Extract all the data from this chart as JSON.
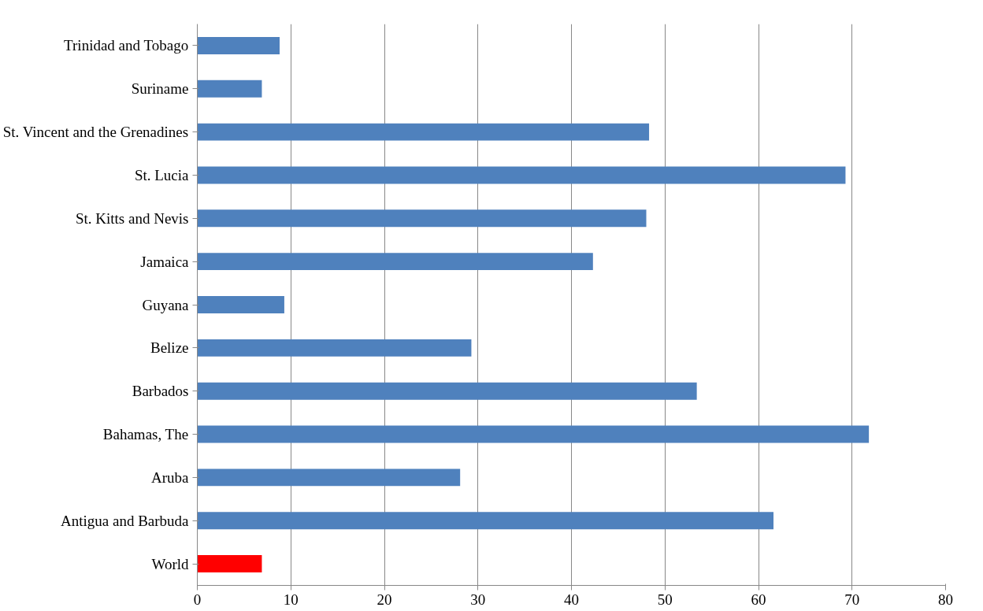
{
  "chart_data": {
    "type": "bar",
    "orientation": "horizontal",
    "categories": [
      "Trinidad and Tobago",
      "Suriname",
      "St. Vincent and the Grenadines",
      "St. Lucia",
      "St. Kitts and Nevis",
      "Jamaica",
      "Guyana",
      "Belize",
      "Barbados",
      "Bahamas, The",
      "Aruba",
      "Antigua and Barbuda",
      "World"
    ],
    "values": [
      8.8,
      6.9,
      48.3,
      69.3,
      48.0,
      42.3,
      9.3,
      29.3,
      53.4,
      71.8,
      28.1,
      61.6,
      6.9
    ],
    "colors": [
      "#4f81bd",
      "#4f81bd",
      "#4f81bd",
      "#4f81bd",
      "#4f81bd",
      "#4f81bd",
      "#4f81bd",
      "#4f81bd",
      "#4f81bd",
      "#4f81bd",
      "#4f81bd",
      "#4f81bd",
      "#ff0000"
    ],
    "xlim": [
      0,
      80
    ],
    "xticks": [
      0,
      10,
      20,
      30,
      40,
      50,
      60,
      70,
      80
    ],
    "grid": "x"
  }
}
